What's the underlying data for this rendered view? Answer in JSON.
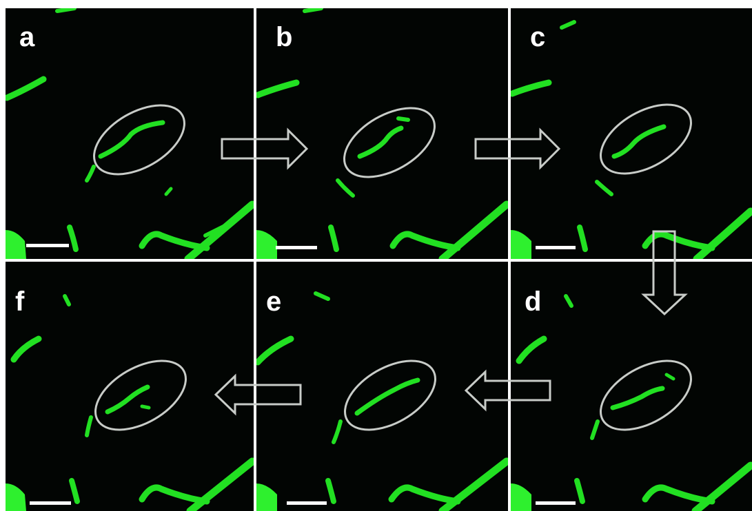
{
  "figure": {
    "panels": [
      {
        "id": "a",
        "label": "a"
      },
      {
        "id": "b",
        "label": "b"
      },
      {
        "id": "c",
        "label": "c"
      },
      {
        "id": "d",
        "label": "d"
      },
      {
        "id": "e",
        "label": "e"
      },
      {
        "id": "f",
        "label": "f"
      }
    ],
    "sequence": [
      "a",
      "b",
      "c",
      "d",
      "e",
      "f"
    ],
    "colors": {
      "background": "#020503",
      "fluorescence": "#22e022",
      "fluorescence_bright": "#3cff3c",
      "annotation": "#c8ccc8",
      "divider": "#ffffff"
    }
  }
}
